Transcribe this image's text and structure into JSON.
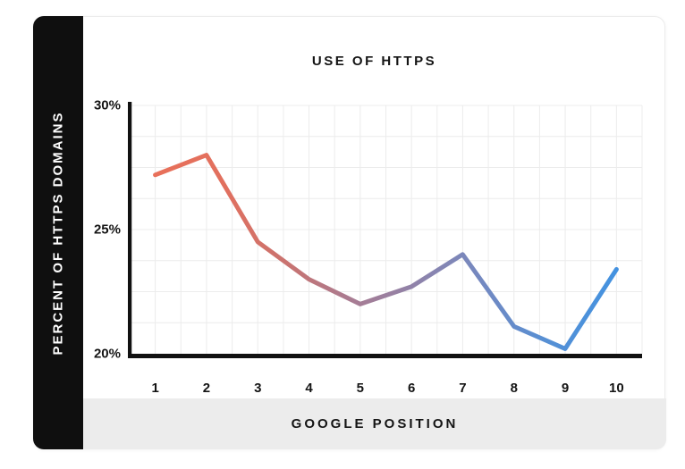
{
  "chart_data": {
    "type": "line",
    "title": "USE OF HTTPS",
    "xlabel": "GOOGLE POSITION",
    "ylabel": "PERCENT OF HTTPS DOMAINS",
    "x": [
      1,
      2,
      3,
      4,
      5,
      6,
      7,
      8,
      9,
      10
    ],
    "values": [
      27.2,
      28.0,
      24.5,
      23.0,
      22.0,
      22.7,
      24.0,
      21.1,
      20.2,
      23.4
    ],
    "unit": "%",
    "ylim": [
      20,
      30
    ],
    "y_ticks": [
      {
        "label": "30%",
        "value": 30
      },
      {
        "label": "25%",
        "value": 25
      },
      {
        "label": "20%",
        "value": 20
      }
    ],
    "grid": {
      "rows": 8,
      "cols": 20,
      "color": "#ececec",
      "on": true
    },
    "legend": "none",
    "line_width": 5,
    "line_gradient": [
      "#E8705A",
      "#E2705E",
      "#C97370",
      "#A87C93",
      "#8E83AB",
      "#7289C2",
      "#5590D5",
      "#4492E0"
    ],
    "axis_color": "#111111"
  },
  "theme": {
    "background": "#ffffff",
    "card_border": "#ececec",
    "sidebar_bg": "#0f0f0f",
    "sidebar_text_color": "#ffffff",
    "footer_bg": "#ececec",
    "text_color": "#141414"
  }
}
